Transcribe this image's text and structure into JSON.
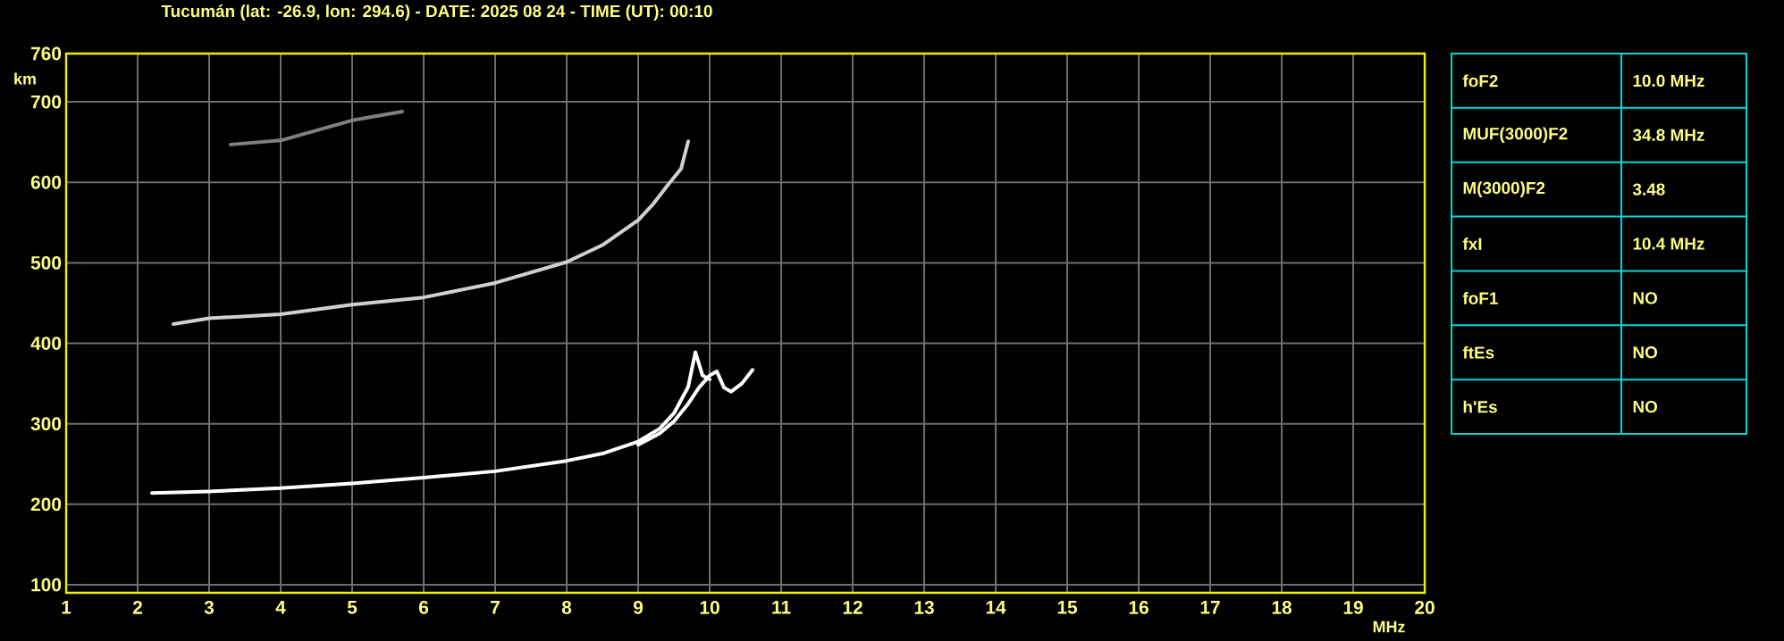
{
  "chart_data": [
    {
      "type": "line",
      "title": "Tucumán (lat: -26.9, lon: 294.6) - DATE: 2025 08 24 - TIME (UT): 00:10",
      "xlabel": "MHz",
      "ylabel": "km",
      "xlim": [
        1,
        20
      ],
      "ylim": [
        90,
        760
      ],
      "xticks": [
        1,
        2,
        3,
        4,
        5,
        6,
        7,
        8,
        9,
        10,
        11,
        12,
        13,
        14,
        15,
        16,
        17,
        18,
        19,
        20
      ],
      "yticks": [
        100,
        200,
        300,
        400,
        500,
        600,
        700,
        760
      ],
      "grid": true,
      "series": [
        {
          "color": "#ffffff",
          "x": [
            2.2,
            3,
            4,
            5,
            6,
            7,
            8,
            8.5,
            9,
            9.3,
            9.5,
            9.7,
            9.8,
            9.9,
            10.0
          ],
          "values": [
            214,
            216,
            220,
            226,
            233,
            241,
            254,
            263,
            278,
            294,
            313,
            346,
            389,
            360,
            355
          ]
        },
        {
          "color": "#ffffff",
          "x": [
            9.0,
            9.3,
            9.5,
            9.7,
            9.85,
            10.0,
            10.1,
            10.2,
            10.3,
            10.45,
            10.6
          ],
          "values": [
            274,
            288,
            303,
            325,
            345,
            360,
            365,
            345,
            340,
            350,
            367
          ]
        },
        {
          "color": "#d0d0d0",
          "x": [
            2.5,
            3,
            4,
            5,
            6,
            7,
            8,
            8.5,
            9,
            9.2,
            9.4,
            9.6,
            9.7
          ],
          "values": [
            424,
            431,
            436,
            448,
            457,
            475,
            501,
            522,
            553,
            572,
            595,
            617,
            651
          ]
        },
        {
          "color": "#808080",
          "x": [
            3.3,
            4,
            5,
            5.7
          ],
          "values": [
            647,
            652,
            677,
            688
          ]
        }
      ]
    },
    {
      "type": "other",
      "categories": [
        "foF2",
        "MUF(3000)F2",
        "M(3000)F2",
        "fxI",
        "foF1",
        "ftEs",
        "h'Es"
      ],
      "annotations": [
        "10.0 MHz",
        "34.8 MHz",
        "3.48",
        "10.4 MHz",
        "NO",
        "NO",
        "NO"
      ]
    }
  ]
}
